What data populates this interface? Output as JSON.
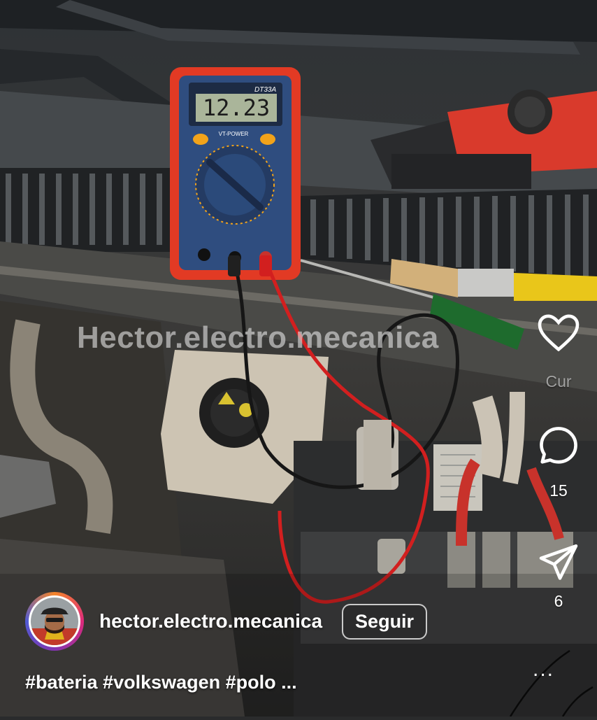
{
  "video": {
    "watermark": "Hector.electro.mecanica",
    "multimeter_model": "DT33A",
    "multimeter_brand": "VT-POWER",
    "multimeter_reading": "12.23"
  },
  "actions": {
    "like_label": "Cur",
    "comment_count": "15",
    "share_count": "6",
    "more_label": "..."
  },
  "author": {
    "username": "hector.electro.mecanica",
    "follow_label": "Seguir"
  },
  "caption": {
    "text": "#bateria #volkswagen #polo ..."
  },
  "colors": {
    "multimeter_red": "#e23a24",
    "multimeter_blue": "#2f4d7f",
    "lcd": "#aab59a",
    "brush_handle": "#e9c61a"
  }
}
